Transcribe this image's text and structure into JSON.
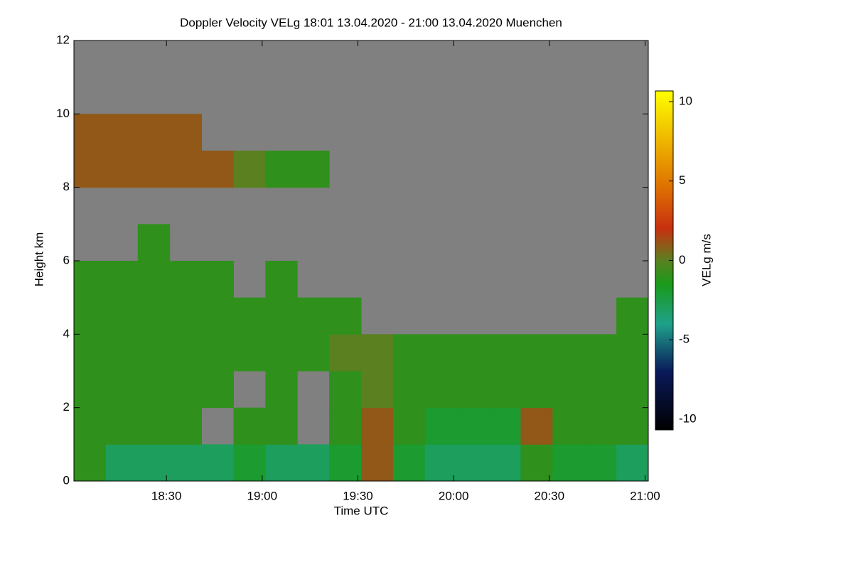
{
  "chart_data": {
    "type": "heatmap",
    "title": "Doppler Velocity VELg   18:01 13.04.2020 - 21:00 13.04.2020 Muenchen",
    "x_label": "Time UTC",
    "y_label": "Height km",
    "colorbar_label": "VELg m/s",
    "xlim": [
      18.0167,
      21.0167
    ],
    "xticks": [
      {
        "value": 18.5,
        "label": "18:30"
      },
      {
        "value": 19,
        "label": "19:00"
      },
      {
        "value": 19.5,
        "label": "19:30"
      },
      {
        "value": 20,
        "label": "20:00"
      },
      {
        "value": 20.5,
        "label": "20:30"
      },
      {
        "value": 21,
        "label": "21:00"
      }
    ],
    "ylim": [
      0,
      12
    ],
    "yticks": [
      0,
      2,
      4,
      6,
      8,
      10,
      12
    ],
    "clim": [
      -10.67,
      10.67
    ],
    "cticks": [
      -10,
      -5,
      0,
      5,
      10
    ],
    "background": "#808080",
    "colormap": [
      [
        -10.67,
        "#000000"
      ],
      [
        -7,
        "#0a1a5a"
      ],
      [
        -4,
        "#1fa08a"
      ],
      [
        -1.5,
        "#1a9a1a"
      ],
      [
        0,
        "#5a8020"
      ],
      [
        2,
        "#c83010"
      ],
      [
        5,
        "#e07a00"
      ],
      [
        10.67,
        "#ffff00"
      ]
    ],
    "z": [
      [
        -1,
        -3,
        -3,
        -3,
        -3,
        -2,
        -3,
        -3,
        -2,
        1,
        -2,
        -3,
        -3,
        -3,
        -1,
        -2,
        -2,
        -3
      ],
      [
        -1,
        -1,
        -1,
        -1,
        null,
        -1,
        -1,
        null,
        -1,
        1,
        -1,
        -2,
        -2,
        -2,
        1,
        -1,
        -1,
        -1
      ],
      [
        -1,
        -1,
        -1,
        -1,
        -1,
        null,
        -1,
        null,
        -1,
        0,
        -1,
        -1,
        -1,
        -1,
        -1,
        -1,
        -1,
        -1
      ],
      [
        -1,
        -1,
        -1,
        -1,
        -1,
        -1,
        -1,
        -1,
        0,
        0,
        -1,
        -1,
        -1,
        -1,
        -1,
        -1,
        -1,
        -1
      ],
      [
        -1,
        -1,
        -1,
        -1,
        -1,
        -1,
        -1,
        -1,
        -1,
        null,
        null,
        null,
        null,
        null,
        null,
        null,
        null,
        -1
      ],
      [
        -1,
        -1,
        -1,
        -1,
        -1,
        null,
        -1,
        null,
        null,
        null,
        null,
        null,
        null,
        null,
        null,
        null,
        null,
        null
      ],
      [
        null,
        null,
        -1,
        null,
        null,
        null,
        null,
        null,
        null,
        null,
        null,
        null,
        null,
        null,
        null,
        null,
        null,
        null
      ],
      [
        null,
        null,
        null,
        null,
        null,
        null,
        null,
        null,
        null,
        null,
        null,
        null,
        null,
        null,
        null,
        null,
        null,
        null
      ],
      [
        1,
        1,
        1,
        1,
        1,
        0,
        -1,
        -1,
        null,
        null,
        null,
        null,
        null,
        null,
        null,
        null,
        null,
        null
      ],
      [
        1,
        1,
        1,
        1,
        null,
        null,
        null,
        null,
        null,
        null,
        null,
        null,
        null,
        null,
        null,
        null,
        null,
        null
      ],
      [
        null,
        null,
        null,
        null,
        null,
        null,
        null,
        null,
        null,
        null,
        null,
        null,
        null,
        null,
        null,
        null,
        null,
        null
      ],
      [
        null,
        null,
        null,
        null,
        null,
        null,
        null,
        null,
        null,
        null,
        null,
        null,
        null,
        null,
        null,
        null,
        null,
        null
      ]
    ]
  }
}
